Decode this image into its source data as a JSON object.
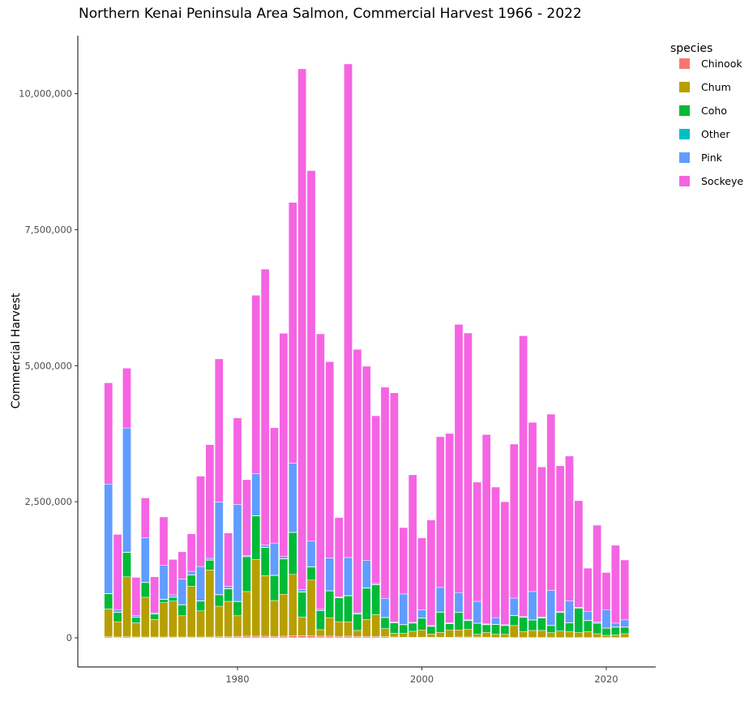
{
  "chart_data": {
    "type": "bar",
    "stacked": true,
    "title": "Northern Kenai Peninsula Area Salmon, Commercial Harvest 1966 - 2022",
    "xlabel": "",
    "ylabel": "Commercial Harvest",
    "ylim": [
      0,
      10800000
    ],
    "xlim": [
      1965,
      2023
    ],
    "x_ticks": [
      1980,
      2000,
      2020
    ],
    "y_ticks": [
      0,
      2500000,
      5000000,
      7500000,
      10000000
    ],
    "y_tick_labels": [
      "0",
      "2,500,000",
      "5,000,000",
      "7,500,000",
      "10,000,000"
    ],
    "grid": false,
    "legend": {
      "title": "species",
      "position": "right"
    },
    "x": [
      1966,
      1967,
      1968,
      1969,
      1970,
      1971,
      1972,
      1973,
      1974,
      1975,
      1976,
      1977,
      1978,
      1979,
      1980,
      1981,
      1982,
      1983,
      1984,
      1985,
      1986,
      1987,
      1988,
      1989,
      1990,
      1991,
      1992,
      1993,
      1994,
      1995,
      1996,
      1997,
      1998,
      1999,
      2000,
      2001,
      2002,
      2003,
      2004,
      2005,
      2006,
      2007,
      2008,
      2009,
      2010,
      2011,
      2012,
      2013,
      2014,
      2015,
      2016,
      2017,
      2018,
      2019,
      2020,
      2021,
      2022
    ],
    "series": [
      {
        "name": "Chinook",
        "color": "#F8766D",
        "values": [
          20000,
          15000,
          20000,
          15000,
          15000,
          15000,
          15000,
          15000,
          15000,
          15000,
          15000,
          15000,
          20000,
          20000,
          25000,
          30000,
          30000,
          30000,
          25000,
          30000,
          35000,
          40000,
          40000,
          30000,
          30000,
          25000,
          30000,
          25000,
          25000,
          25000,
          20000,
          15000,
          10000,
          10000,
          10000,
          10000,
          10000,
          10000,
          15000,
          15000,
          15000,
          10000,
          5000,
          5000,
          5000,
          5000,
          5000,
          5000,
          5000,
          5000,
          5000,
          5000,
          5000,
          5000,
          5000,
          5000,
          5000
        ]
      },
      {
        "name": "Chum",
        "color": "#B79F00",
        "values": [
          510000,
          280000,
          1100000,
          260000,
          730000,
          320000,
          630000,
          660000,
          390000,
          930000,
          480000,
          1230000,
          560000,
          650000,
          380000,
          820000,
          1410000,
          1110000,
          660000,
          770000,
          1130000,
          340000,
          1020000,
          120000,
          340000,
          270000,
          260000,
          110000,
          310000,
          400000,
          150000,
          70000,
          70000,
          110000,
          130000,
          60000,
          90000,
          130000,
          130000,
          140000,
          50000,
          90000,
          60000,
          60000,
          220000,
          110000,
          130000,
          130000,
          90000,
          120000,
          110000,
          90000,
          110000,
          70000,
          40000,
          50000,
          70000
        ]
      },
      {
        "name": "Coho",
        "color": "#00BA38",
        "values": [
          280000,
          170000,
          450000,
          100000,
          270000,
          100000,
          60000,
          70000,
          200000,
          210000,
          180000,
          180000,
          210000,
          230000,
          260000,
          640000,
          800000,
          520000,
          460000,
          650000,
          770000,
          460000,
          240000,
          350000,
          490000,
          440000,
          480000,
          300000,
          580000,
          550000,
          200000,
          190000,
          160000,
          150000,
          220000,
          140000,
          370000,
          120000,
          320000,
          160000,
          200000,
          140000,
          180000,
          160000,
          180000,
          260000,
          190000,
          230000,
          130000,
          340000,
          160000,
          450000,
          200000,
          190000,
          130000,
          140000,
          120000
        ]
      },
      {
        "name": "Other",
        "color": "#00BFC4",
        "values": [
          5000,
          5000,
          5000,
          5000,
          5000,
          5000,
          5000,
          5000,
          5000,
          5000,
          5000,
          5000,
          5000,
          5000,
          5000,
          5000,
          5000,
          5000,
          5000,
          5000,
          5000,
          5000,
          5000,
          5000,
          5000,
          5000,
          5000,
          5000,
          5000,
          5000,
          5000,
          5000,
          5000,
          5000,
          5000,
          5000,
          5000,
          5000,
          5000,
          5000,
          5000,
          5000,
          5000,
          5000,
          5000,
          5000,
          5000,
          5000,
          5000,
          5000,
          5000,
          5000,
          5000,
          5000,
          5000,
          5000,
          5000
        ]
      },
      {
        "name": "Pink",
        "color": "#619CFF",
        "values": [
          2010000,
          50000,
          2280000,
          30000,
          820000,
          20000,
          620000,
          40000,
          470000,
          60000,
          630000,
          30000,
          1700000,
          40000,
          1780000,
          20000,
          770000,
          40000,
          590000,
          40000,
          1270000,
          40000,
          470000,
          20000,
          600000,
          10000,
          700000,
          20000,
          500000,
          20000,
          350000,
          10000,
          560000,
          10000,
          150000,
          10000,
          450000,
          10000,
          360000,
          10000,
          400000,
          10000,
          120000,
          10000,
          320000,
          10000,
          520000,
          10000,
          640000,
          10000,
          400000,
          10000,
          160000,
          20000,
          330000,
          70000,
          130000
        ]
      },
      {
        "name": "Sockeye",
        "color": "#F564E3",
        "values": [
          1860000,
          1380000,
          1100000,
          700000,
          730000,
          660000,
          890000,
          650000,
          500000,
          690000,
          1660000,
          2090000,
          2630000,
          980000,
          1590000,
          1390000,
          3280000,
          5070000,
          2120000,
          4100000,
          4790000,
          9570000,
          6810000,
          5060000,
          3610000,
          1460000,
          9070000,
          4840000,
          3570000,
          3080000,
          3880000,
          4210000,
          1220000,
          2710000,
          1320000,
          1940000,
          2770000,
          3480000,
          4930000,
          5270000,
          2190000,
          3480000,
          2400000,
          2260000,
          2830000,
          5160000,
          3110000,
          2760000,
          3240000,
          2680000,
          2660000,
          1960000,
          800000,
          1780000,
          690000,
          1430000,
          1100000
        ]
      }
    ]
  }
}
